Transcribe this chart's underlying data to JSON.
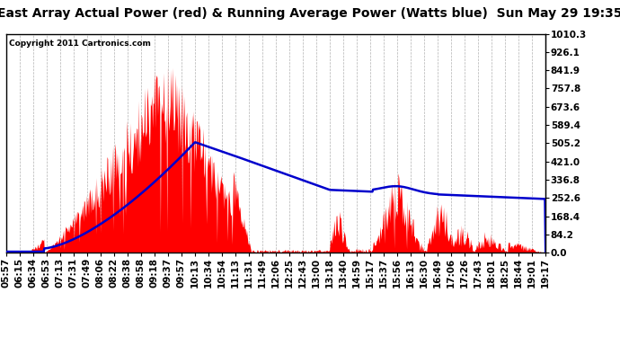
{
  "title": "East Array Actual Power (red) & Running Average Power (Watts blue)  Sun May 29 19:35",
  "copyright": "Copyright 2011 Cartronics.com",
  "ylabel_right": [
    "1010.3",
    "926.1",
    "841.9",
    "757.8",
    "673.6",
    "589.4",
    "505.2",
    "421.0",
    "336.8",
    "252.6",
    "168.4",
    "84.2",
    "0.0"
  ],
  "ymax": 1010.3,
  "ymin": 0.0,
  "background_color": "#ffffff",
  "plot_bg": "#ffffff",
  "grid_color": "#aaaaaa",
  "red_color": "#ff0000",
  "blue_color": "#0000cc",
  "title_fontsize": 10,
  "tick_label_fontsize": 7.5,
  "xtick_labels": [
    "05:57",
    "06:15",
    "06:34",
    "06:53",
    "07:13",
    "07:31",
    "07:49",
    "08:06",
    "08:22",
    "08:38",
    "08:58",
    "09:18",
    "09:37",
    "09:57",
    "10:13",
    "10:34",
    "10:54",
    "11:13",
    "11:31",
    "11:49",
    "12:06",
    "12:25",
    "12:43",
    "13:00",
    "13:18",
    "13:40",
    "14:59",
    "15:17",
    "15:37",
    "15:56",
    "16:13",
    "16:30",
    "16:49",
    "17:06",
    "17:26",
    "17:43",
    "18:01",
    "18:25",
    "18:44",
    "19:01",
    "19:17"
  ],
  "n_points": 820
}
